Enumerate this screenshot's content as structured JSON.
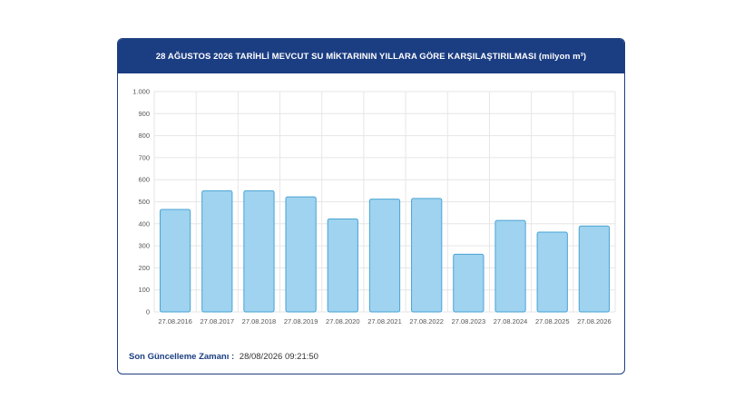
{
  "card": {
    "title": "28 AĞUSTOS 2026 TARİHLİ MEVCUT SU MİKTARININ YILLARA GÖRE KARŞILAŞTIRILMASI (milyon m³)"
  },
  "footer": {
    "label": "Son Güncelleme Zamanı :",
    "value": "28/08/2026 09:21:50"
  },
  "colors": {
    "header": "#1b3d82",
    "bar_fill": "#9fd3ef",
    "bar_stroke": "#4aa3d4",
    "grid": "#e6e6e6"
  },
  "chart_data": {
    "type": "bar",
    "title": "28 AĞUSTOS 2026 TARİHLİ MEVCUT SU MİKTARININ YILLARA GÖRE KARŞILAŞTIRILMASI (milyon m³)",
    "categories": [
      "27.08.2016",
      "27.08.2017",
      "27.08.2018",
      "27.08.2019",
      "27.08.2020",
      "27.08.2021",
      "27.08.2022",
      "27.08.2023",
      "27.08.2024",
      "27.08.2025",
      "27.08.2026"
    ],
    "values": [
      465,
      550,
      550,
      522,
      422,
      512,
      515,
      262,
      415,
      362,
      390
    ],
    "ylim": [
      0,
      1000
    ],
    "yticks": [
      0,
      100,
      200,
      300,
      400,
      500,
      600,
      700,
      800,
      900,
      1000
    ],
    "ytick_labels": [
      "0",
      "100",
      "200",
      "300",
      "400",
      "500",
      "600",
      "700",
      "800",
      "900",
      "1.000"
    ],
    "grid": true,
    "legend": "none"
  }
}
